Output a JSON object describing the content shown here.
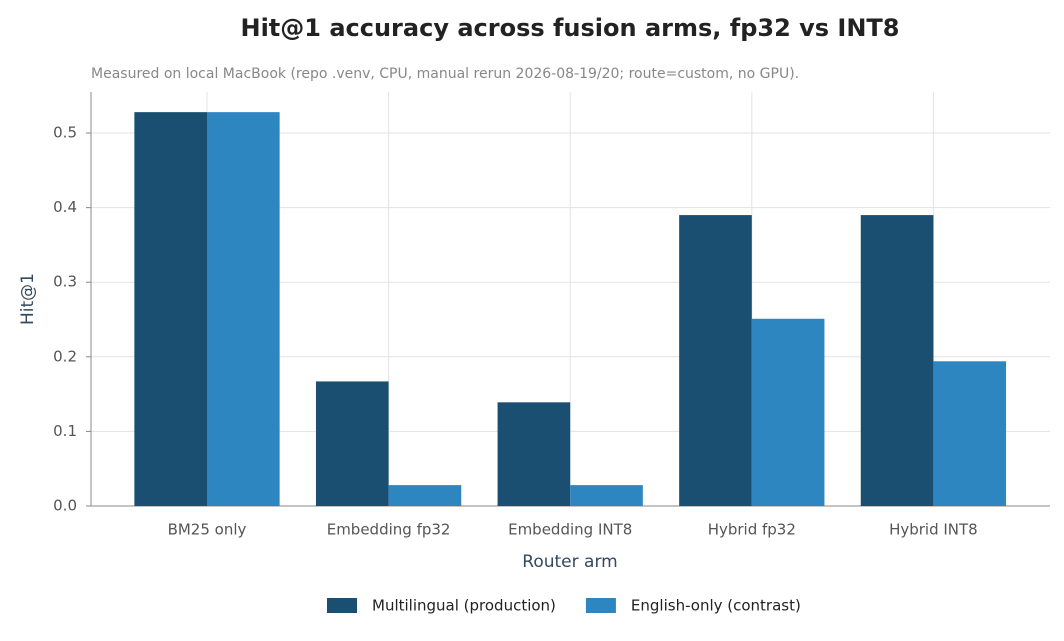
{
  "chart_data": {
    "type": "bar",
    "title": "Hit@1 accuracy across fusion arms, fp32 vs INT8",
    "subtitle": "Measured on local MacBook (repo .venv, CPU, manual rerun 2026-08-19/20; route=custom, no GPU).",
    "x_label": "Router arm",
    "y_label": "Hit@1",
    "categories": [
      "BM25 only",
      "Embedding fp32",
      "Embedding INT8",
      "Hybrid fp32",
      "Hybrid INT8"
    ],
    "series": [
      {
        "name": "Multilingual (production)",
        "color": "#1b4f72",
        "values": [
          0.528,
          0.167,
          0.139,
          0.39,
          0.39
        ]
      },
      {
        "name": "English-only (contrast)",
        "color": "#2e86c1",
        "values": [
          0.528,
          0.028,
          0.028,
          0.251,
          0.194
        ]
      }
    ],
    "ylim": [
      0,
      0.555
    ],
    "yticks": [
      {
        "value": 0,
        "label": "0.0"
      },
      0.1,
      0.2,
      0.3,
      0.4,
      0.5
    ],
    "grid": true,
    "legend": "bottom"
  }
}
